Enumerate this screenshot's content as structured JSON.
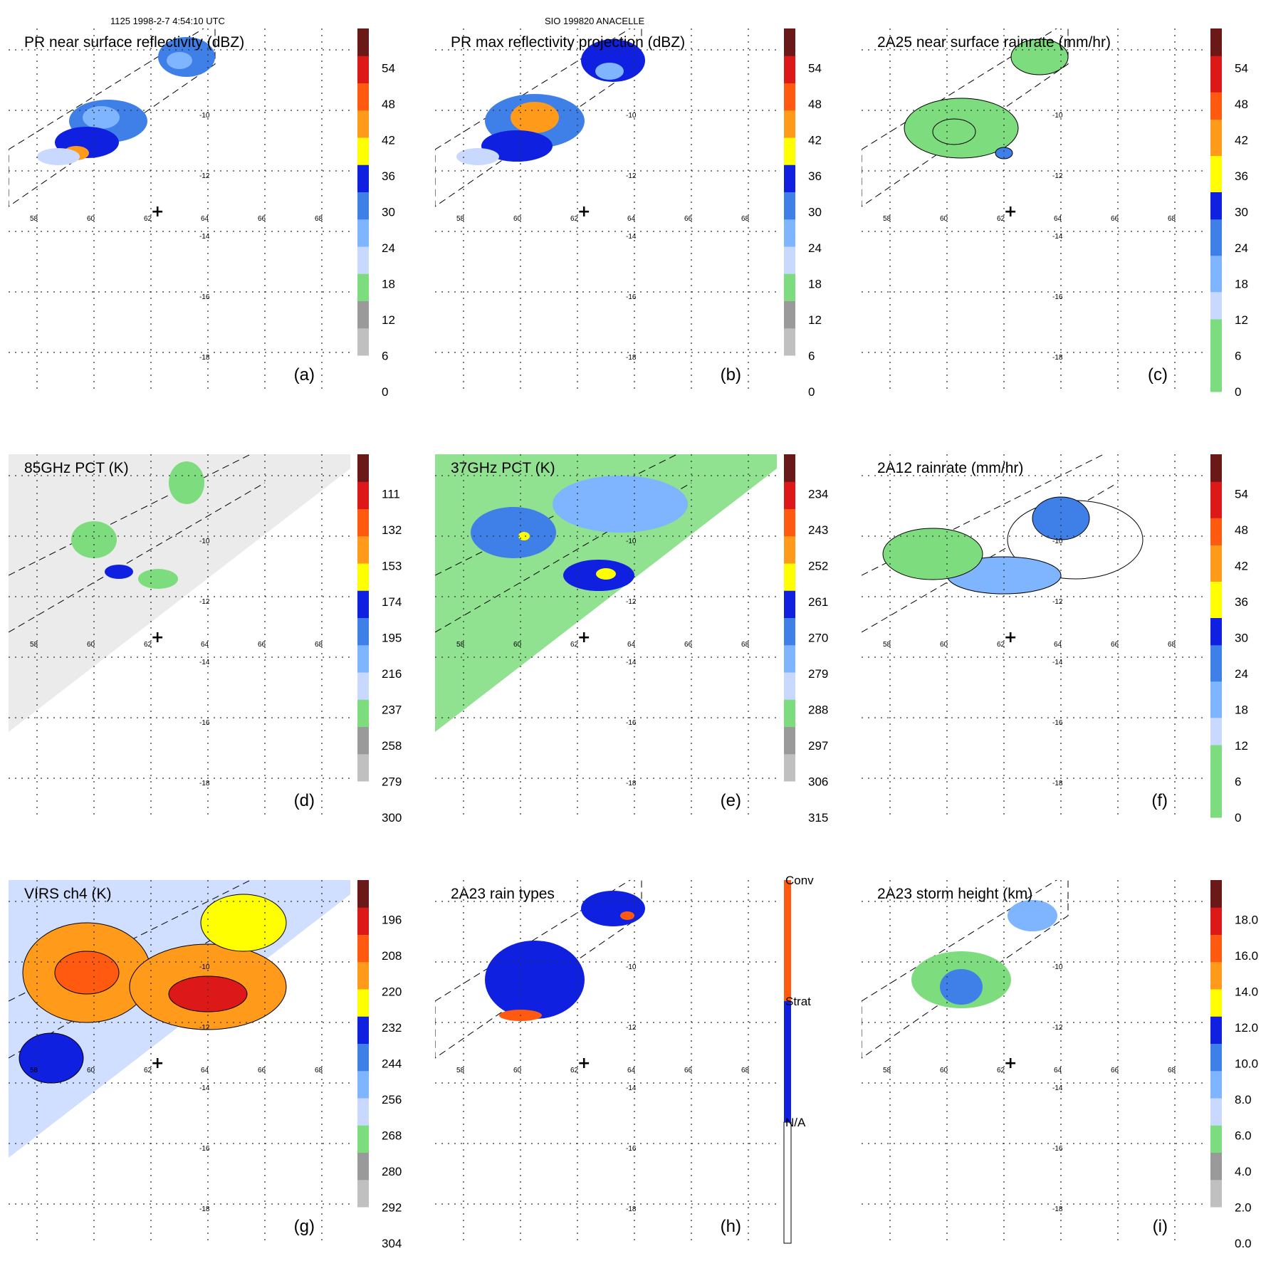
{
  "header": {
    "orbit_time": "1125 1998-2-7 4:54:10 UTC",
    "storm": "SIO 199820 ANACELLE"
  },
  "map": {
    "lon_labels": [
      "58",
      "60",
      "62",
      "64",
      "66",
      "68"
    ],
    "lat_labels": [
      "-10",
      "-12",
      "-14",
      "-16",
      "-18"
    ],
    "storm_center_marker": "+"
  },
  "colors": {
    "white": "#ffffff",
    "gray1": "#e6e6e6",
    "gray2": "#c0c0c0",
    "gray3": "#9a9a9a",
    "green": "#7ddc7d",
    "lightblue": "#c8d8ff",
    "skyblue": "#7fb4ff",
    "midblue": "#3f7fe8",
    "blue": "#1020e0",
    "yellow": "#ffff00",
    "orange": "#ff9a1a",
    "redorange": "#ff5a10",
    "red": "#dd1818",
    "darkred": "#6a1818"
  },
  "chart_data": [
    {
      "type": "heatmap",
      "panel": "a",
      "title": "PR near surface reflectivity (dBZ)",
      "colorbar_ticks": [
        "0",
        "6",
        "12",
        "18",
        "24",
        "30",
        "36",
        "42",
        "48",
        "54"
      ]
    },
    {
      "type": "heatmap",
      "panel": "b",
      "title": "PR max reflectivity projection (dBZ)",
      "colorbar_ticks": [
        "0",
        "6",
        "12",
        "18",
        "24",
        "30",
        "36",
        "42",
        "48",
        "54"
      ]
    },
    {
      "type": "heatmap",
      "panel": "c",
      "title": "2A25 near surface rainrate (mm/hr)",
      "colorbar_ticks": [
        "0",
        "6",
        "12",
        "18",
        "24",
        "30",
        "36",
        "42",
        "48",
        "54"
      ]
    },
    {
      "type": "heatmap",
      "panel": "d",
      "title": "85GHz PCT (K)",
      "colorbar_ticks": [
        "300",
        "279",
        "258",
        "237",
        "216",
        "195",
        "174",
        "153",
        "132",
        "111"
      ]
    },
    {
      "type": "heatmap",
      "panel": "e",
      "title": "37GHz PCT (K)",
      "colorbar_ticks": [
        "315",
        "306",
        "297",
        "288",
        "279",
        "270",
        "261",
        "252",
        "243",
        "234"
      ]
    },
    {
      "type": "heatmap",
      "panel": "f",
      "title": "2A12 rainrate (mm/hr)",
      "colorbar_ticks": [
        "0",
        "6",
        "12",
        "18",
        "24",
        "30",
        "36",
        "42",
        "48",
        "54"
      ]
    },
    {
      "type": "heatmap",
      "panel": "g",
      "title": "VIRS ch4 (K)",
      "colorbar_ticks": [
        "304",
        "292",
        "280",
        "268",
        "256",
        "244",
        "232",
        "220",
        "208",
        "196"
      ]
    },
    {
      "type": "heatmap",
      "panel": "h",
      "title": "2A23 rain types",
      "colorbar_ticks": [
        "N/A",
        "Strat",
        "Conv"
      ]
    },
    {
      "type": "heatmap",
      "panel": "i",
      "title": "2A23 storm height (km)",
      "colorbar_ticks": [
        "0.0",
        "2.0",
        "4.0",
        "6.0",
        "8.0",
        "10.0",
        "12.0",
        "14.0",
        "16.0",
        "18.0"
      ]
    }
  ]
}
